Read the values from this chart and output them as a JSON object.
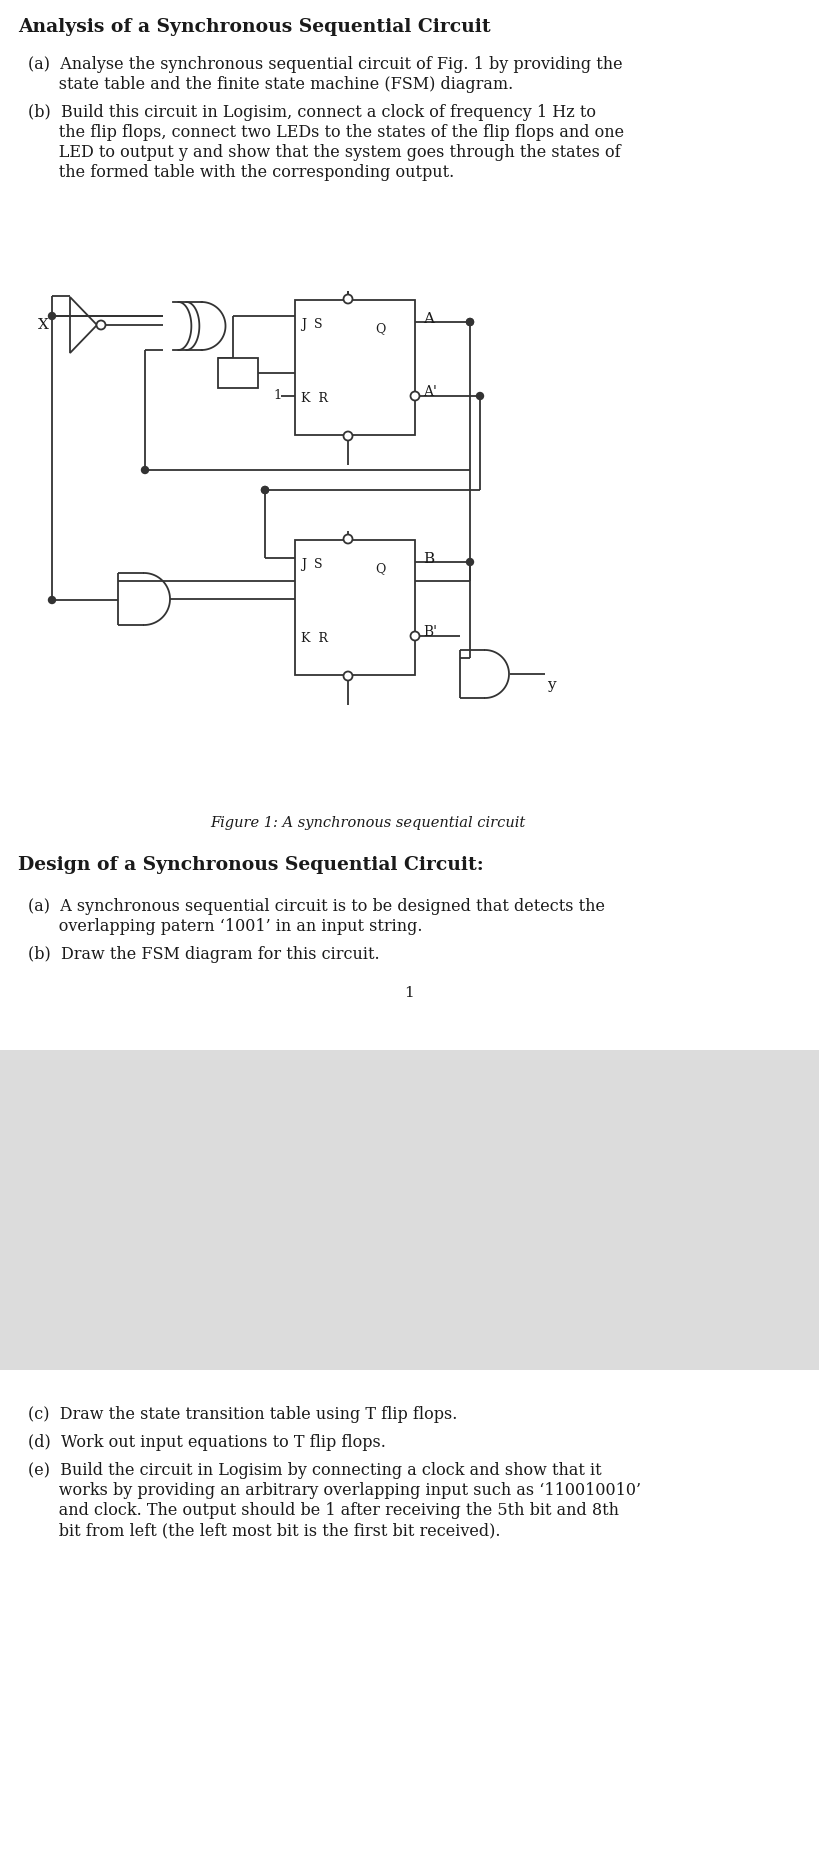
{
  "section1_title": "Analysis of a Synchronous Sequential Circuit",
  "s1a_1": "(a)  Analyse the synchronous sequential circuit of Fig. 1 by providing the",
  "s1a_2": "      state table and the finite state machine (FSM) diagram.",
  "s1b_1": "(b)  Build this circuit in Logisim, connect a clock of frequency 1 Hz to",
  "s1b_2": "      the flip flops, connect two LEDs to the states of the flip flops and one",
  "s1b_3": "      LED to output y and show that the system goes through the states of",
  "s1b_4": "      the formed table with the corresponding output.",
  "fig_cap": "Figure 1: A synchronous sequential circuit",
  "section2_title": "Design of a Synchronous Sequential Circuit",
  "s2a_1": "(a)  A synchronous sequential circuit is to be designed that detects the",
  "s2a_2": "      overlapping patern ‘1001’ in an input string.",
  "s2b": "(b)  Draw the FSM diagram for this circuit.",
  "page_num": "1",
  "s3c": "(c)  Draw the state transition table using T flip flops.",
  "s3d": "(d)  Work out input equations to T flip flops.",
  "s3e_1": "(e)  Build the circuit in Logisim by connecting a clock and show that it",
  "s3e_2": "      works by providing an arbitrary overlapping input such as ‘110010010’",
  "s3e_3": "      and clock. The output should be 1 after receiving the 5th bit and 8th",
  "s3e_4": "      bit from left (the left most bit is the first bit received).",
  "bg": "#ffffff",
  "gray": "#dcdcdc",
  "tc": "#1a1a1a",
  "lc": "#333333"
}
